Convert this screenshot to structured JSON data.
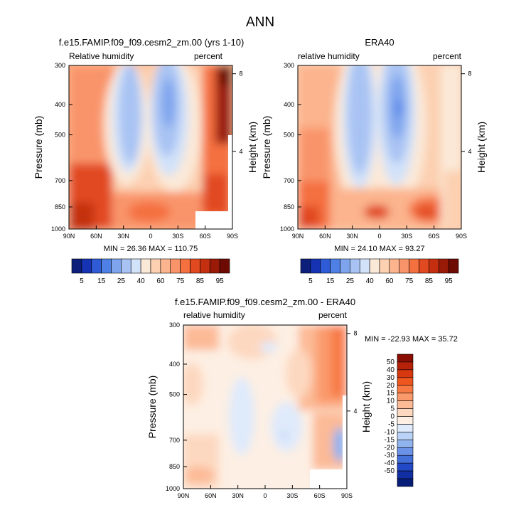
{
  "page_title": "ANN",
  "chart_data": [
    {
      "type": "heatmap",
      "id": "model",
      "title": "f.e15.FAMIP.f09_f09.cesm2_zm.00 (yrs 1-10)",
      "left_label": "Relative humidity",
      "right_label": "percent",
      "ylabel": "Pressure (mb)",
      "ylabel_right": "Height (km)",
      "x_ticks": [
        "90N",
        "60N",
        "30N",
        "0",
        "30S",
        "60S",
        "90S"
      ],
      "y_ticks": [
        "300",
        "400",
        "500",
        "700",
        "850",
        "1000"
      ],
      "y_ticks_right": [
        "8",
        "4"
      ],
      "stats": "MIN = 26.36  MAX = 110.75",
      "colorbar": {
        "orientation": "horizontal",
        "labels": [
          "5",
          "15",
          "25",
          "40",
          "60",
          "75",
          "85",
          "95"
        ],
        "colors": [
          "#0c1f7a",
          "#1633b4",
          "#2f5bd6",
          "#4f80e6",
          "#7ea4ee",
          "#a8c3f3",
          "#d2e2f9",
          "#fbe9d8",
          "#fcd0b1",
          "#fbb48d",
          "#f9946a",
          "#f4703f",
          "#e14a20",
          "#c4300f",
          "#9a1a08",
          "#6d0a02"
        ]
      }
    },
    {
      "type": "heatmap",
      "id": "obs",
      "title": "ERA40",
      "left_label": "relative humidity",
      "right_label": "percent",
      "ylabel": "Pressure (mb)",
      "ylabel_right": "Height (km)",
      "x_ticks": [
        "90N",
        "60N",
        "30N",
        "0",
        "30S",
        "60S",
        "90S"
      ],
      "y_ticks": [
        "300",
        "400",
        "500",
        "700",
        "850",
        "1000"
      ],
      "y_ticks_right": [
        "8",
        "4"
      ],
      "stats": "MIN = 24.10  MAX = 93.27",
      "colorbar": {
        "orientation": "horizontal",
        "labels": [
          "5",
          "15",
          "25",
          "40",
          "60",
          "75",
          "85",
          "95"
        ],
        "colors": [
          "#0c1f7a",
          "#1633b4",
          "#2f5bd6",
          "#4f80e6",
          "#7ea4ee",
          "#a8c3f3",
          "#d2e2f9",
          "#fbe9d8",
          "#fcd0b1",
          "#fbb48d",
          "#f9946a",
          "#f4703f",
          "#e14a20",
          "#c4300f",
          "#9a1a08",
          "#6d0a02"
        ]
      }
    },
    {
      "type": "heatmap",
      "id": "diff",
      "title": "f.e15.FAMIP.f09_f09.cesm2_zm.00 - ERA40",
      "left_label": "relative humidity",
      "right_label": "percent",
      "ylabel": "Pressure (mb)",
      "ylabel_right": "Height (km)",
      "x_ticks": [
        "90N",
        "60N",
        "30N",
        "0",
        "30S",
        "60S",
        "90S"
      ],
      "y_ticks": [
        "300",
        "400",
        "500",
        "700",
        "850",
        "1000"
      ],
      "y_ticks_right": [
        "8",
        "4"
      ],
      "stats": "MIN = -22.93  MAX = 35.72",
      "colorbar": {
        "orientation": "vertical",
        "labels": [
          "50",
          "40",
          "30",
          "20",
          "15",
          "10",
          "5",
          "0",
          "-5",
          "-10",
          "-15",
          "-20",
          "-30",
          "-40",
          "-50"
        ],
        "colors": [
          "#8a0e02",
          "#b62208",
          "#d8380f",
          "#ee5620",
          "#f77a45",
          "#fa9a6c",
          "#fcba96",
          "#fdd8c0",
          "#fdefe3",
          "#dfeafb",
          "#bad2f5",
          "#92b4ee",
          "#6b92e6",
          "#4470da",
          "#2449c6",
          "#112fa3",
          "#071e78"
        ]
      }
    }
  ]
}
